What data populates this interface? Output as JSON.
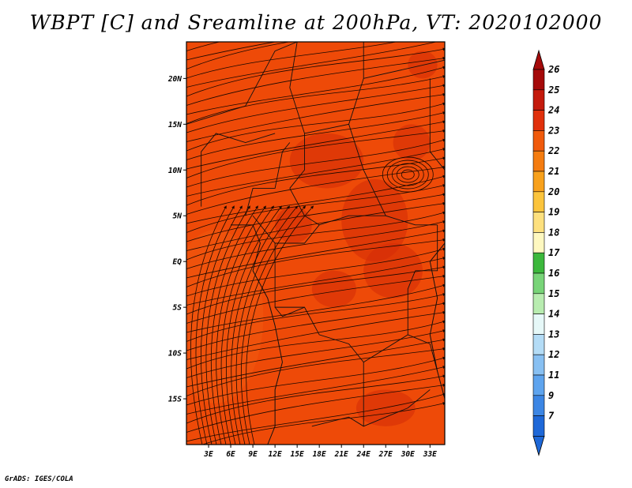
{
  "title": "WBPT [C] and Sreamline at 200hPa, VT: 2020102000",
  "footer": "GrADS: IGES/COLA",
  "map": {
    "lon_range": [
      0,
      35
    ],
    "lat_range": [
      -20,
      24
    ],
    "lat_ticks": [
      {
        "value": 20,
        "label": "20N"
      },
      {
        "value": 15,
        "label": "15N"
      },
      {
        "value": 10,
        "label": "10N"
      },
      {
        "value": 5,
        "label": "5N"
      },
      {
        "value": 0,
        "label": "EQ"
      },
      {
        "value": -5,
        "label": "5S"
      },
      {
        "value": -10,
        "label": "10S"
      },
      {
        "value": -15,
        "label": "15S"
      }
    ],
    "lon_ticks": [
      {
        "value": 3,
        "label": "3E"
      },
      {
        "value": 6,
        "label": "6E"
      },
      {
        "value": 9,
        "label": "9E"
      },
      {
        "value": 12,
        "label": "12E"
      },
      {
        "value": 15,
        "label": "15E"
      },
      {
        "value": 18,
        "label": "18E"
      },
      {
        "value": 21,
        "label": "21E"
      },
      {
        "value": 24,
        "label": "24E"
      },
      {
        "value": 27,
        "label": "27E"
      },
      {
        "value": 30,
        "label": "30E"
      },
      {
        "value": 33,
        "label": "33E"
      }
    ],
    "field_colors": {
      "base": "#ee4a08",
      "warm": "#d42c08",
      "light": "#f05a10",
      "streamline": "#1a0800",
      "border": "#111111"
    }
  },
  "colorbar": {
    "levels": [
      {
        "label": "26",
        "color": "#a50a0a"
      },
      {
        "label": "25",
        "color": "#c41a0c"
      },
      {
        "label": "24",
        "color": "#e0300c"
      },
      {
        "label": "23",
        "color": "#f05a0c"
      },
      {
        "label": "22",
        "color": "#f47c10"
      },
      {
        "label": "21",
        "color": "#f8a11c"
      },
      {
        "label": "20",
        "color": "#fbc43c"
      },
      {
        "label": "19",
        "color": "#fde07e"
      },
      {
        "label": "18",
        "color": "#fef8c0"
      },
      {
        "label": "17",
        "color": "#3cb83c"
      },
      {
        "label": "16",
        "color": "#78d478"
      },
      {
        "label": "15",
        "color": "#b8ecb0"
      },
      {
        "label": "14",
        "color": "#e6f8f8"
      },
      {
        "label": "13",
        "color": "#b4dcf6"
      },
      {
        "label": "12",
        "color": "#88c0f2"
      },
      {
        "label": "11",
        "color": "#5ea4ee"
      },
      {
        "label": "9",
        "color": "#3c86e4"
      },
      {
        "label": "7",
        "color": "#1e68d8"
      }
    ],
    "top_arrow_color": "#a50a0a",
    "bottom_arrow_color": "#1e68d8"
  }
}
